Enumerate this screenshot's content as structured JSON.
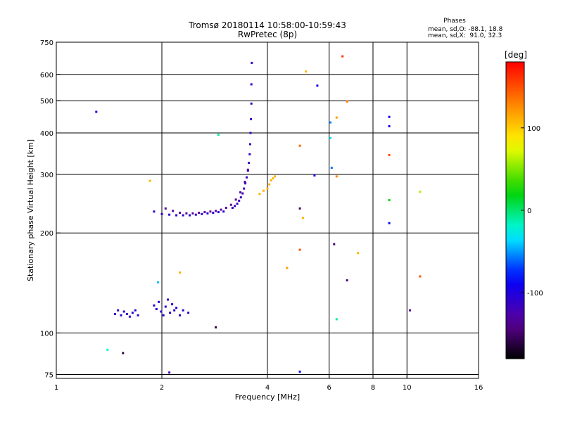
{
  "chart_data": {
    "type": "scatter",
    "title": "Tromsø 20180114 10:58:00-10:59:43",
    "subtitle": "RwPretec (8p)",
    "xlabel": "Frequency [MHz]",
    "ylabel": "Stationary phase Virtual Height [km]",
    "x_scale": "log",
    "y_scale": "log",
    "xlim": [
      1,
      16
    ],
    "ylim": [
      73,
      750
    ],
    "x_ticks": [
      1,
      2,
      4,
      6,
      8,
      10,
      16
    ],
    "y_ticks": [
      75,
      100,
      200,
      300,
      400,
      500,
      600,
      750
    ],
    "grid": true,
    "phase_box": {
      "title": "Phases",
      "line1": "mean, sd,O: -88.1, 18.8",
      "line2": "mean, sd,X:  91.0, 32.3"
    },
    "colorbar": {
      "label": "[deg]",
      "range": [
        -180,
        180
      ],
      "ticks": [
        100,
        0,
        -100
      ]
    },
    "point_groups": {
      "o_trace_upper": {
        "phase": -115,
        "x": [
          3.18,
          3.23,
          3.28,
          3.32,
          3.36,
          3.4,
          3.43,
          3.46,
          3.49,
          3.52,
          3.54,
          3.56,
          3.57,
          3.58,
          3.59,
          3.6,
          3.6,
          3.61
        ],
        "y": [
          238,
          241,
          245,
          250,
          256,
          263,
          272,
          282,
          294,
          308,
          325,
          345,
          370,
          400,
          440,
          490,
          560,
          650
        ]
      },
      "o_trace_lower": {
        "phase": -135,
        "x": [
          2.05,
          2.15,
          2.25,
          2.35,
          2.45,
          2.55,
          2.65,
          2.75,
          2.85,
          2.95,
          3.05,
          3.15,
          3.25,
          3.35,
          3.45,
          3.52
        ],
        "y": [
          237,
          233,
          230,
          229,
          229,
          230,
          231,
          232,
          233,
          235,
          238,
          243,
          252,
          265,
          285,
          310
        ]
      },
      "o_bottom_band": {
        "phase": -105,
        "x": [
          1.9,
          2.0,
          2.1,
          2.2,
          2.3,
          2.4,
          2.5,
          2.6,
          2.7,
          2.8,
          2.9,
          3.0
        ],
        "y": [
          232,
          228,
          227,
          226,
          226,
          226,
          227,
          228,
          229,
          230,
          231,
          232
        ]
      },
      "low_cluster_left": {
        "phase": -110,
        "x": [
          1.47,
          1.5,
          1.53,
          1.56,
          1.59,
          1.62,
          1.65,
          1.68,
          1.71
        ],
        "y": [
          114,
          117,
          113,
          116,
          114,
          112,
          115,
          117,
          113
        ]
      },
      "low_cluster_mid": {
        "phase": -105,
        "x": [
          1.9,
          1.93,
          1.96,
          1.99,
          2.02,
          2.05,
          2.08,
          2.11,
          2.14,
          2.17,
          2.2,
          2.25,
          2.3,
          2.38
        ],
        "y": [
          121,
          118,
          124,
          116,
          113,
          120,
          126,
          115,
          122,
          117,
          119,
          113,
          117,
          115
        ]
      },
      "x_trace": {
        "phase": 110,
        "x": [
          3.8,
          3.9,
          4.0,
          4.05,
          4.1,
          4.15,
          4.2
        ],
        "y": [
          262,
          268,
          272,
          280,
          288,
          292,
          296
        ]
      },
      "scatter_points": [
        {
          "x": 1.3,
          "y": 463,
          "phase": -95
        },
        {
          "x": 1.4,
          "y": 89,
          "phase": -20
        },
        {
          "x": 1.55,
          "y": 87,
          "phase": -160
        },
        {
          "x": 1.85,
          "y": 287,
          "phase": 110
        },
        {
          "x": 1.95,
          "y": 142,
          "phase": -40
        },
        {
          "x": 2.1,
          "y": 76,
          "phase": -120
        },
        {
          "x": 2.25,
          "y": 152,
          "phase": 110
        },
        {
          "x": 2.85,
          "y": 104,
          "phase": -160
        },
        {
          "x": 2.9,
          "y": 395,
          "phase": -10
        },
        {
          "x": 4.55,
          "y": 157,
          "phase": 120
        },
        {
          "x": 4.95,
          "y": 366,
          "phase": 140
        },
        {
          "x": 4.95,
          "y": 237,
          "phase": -150
        },
        {
          "x": 4.95,
          "y": 178,
          "phase": 150
        },
        {
          "x": 4.95,
          "y": 76.5,
          "phase": -80
        },
        {
          "x": 5.05,
          "y": 222,
          "phase": 110
        },
        {
          "x": 5.15,
          "y": 612,
          "phase": 110
        },
        {
          "x": 5.45,
          "y": 298,
          "phase": -95
        },
        {
          "x": 5.55,
          "y": 555,
          "phase": -95
        },
        {
          "x": 6.05,
          "y": 430,
          "phase": -55
        },
        {
          "x": 6.05,
          "y": 386,
          "phase": -35
        },
        {
          "x": 6.1,
          "y": 314,
          "phase": -60
        },
        {
          "x": 6.2,
          "y": 185,
          "phase": -150
        },
        {
          "x": 6.3,
          "y": 445,
          "phase": 120
        },
        {
          "x": 6.3,
          "y": 296,
          "phase": 130
        },
        {
          "x": 6.3,
          "y": 110,
          "phase": -10
        },
        {
          "x": 6.55,
          "y": 680,
          "phase": 160
        },
        {
          "x": 6.75,
          "y": 497,
          "phase": 130
        },
        {
          "x": 6.75,
          "y": 144,
          "phase": -145
        },
        {
          "x": 7.25,
          "y": 174,
          "phase": 110
        },
        {
          "x": 8.9,
          "y": 447,
          "phase": -90
        },
        {
          "x": 8.9,
          "y": 419,
          "phase": -100
        },
        {
          "x": 8.9,
          "y": 343,
          "phase": 150
        },
        {
          "x": 8.9,
          "y": 251,
          "phase": 20
        },
        {
          "x": 8.9,
          "y": 214,
          "phase": -80
        },
        {
          "x": 10.2,
          "y": 117,
          "phase": -130
        },
        {
          "x": 10.9,
          "y": 266,
          "phase": 60
        },
        {
          "x": 10.9,
          "y": 148,
          "phase": 150
        }
      ]
    }
  }
}
